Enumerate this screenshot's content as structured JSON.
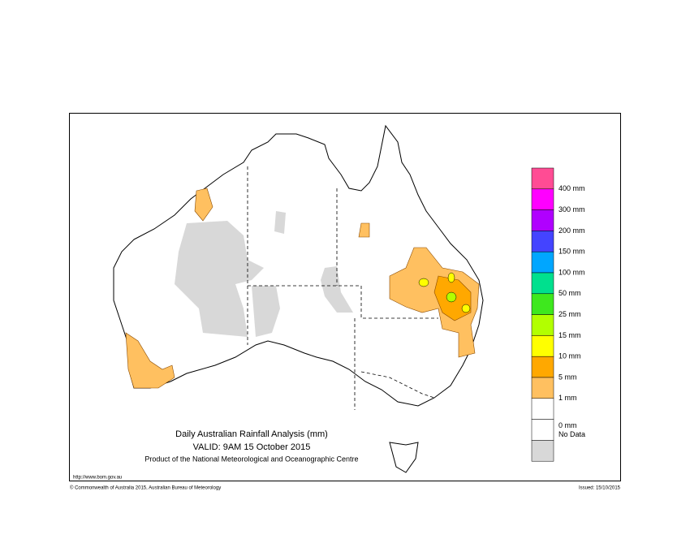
{
  "map": {
    "title": "Daily Australian Rainfall Analysis (mm)",
    "valid": "VALID: 9AM 15 October 2015",
    "product": "Product of the National Meteorological and Oceanographic Centre",
    "url": "http://www.bom.gov.au",
    "copyright": "© Commonwealth of Australia 2015, Australian Bureau of Meteorology",
    "issued": "Issued: 15/10/2015",
    "legend": {
      "labels": [
        "400 mm",
        "300 mm",
        "200 mm",
        "150 mm",
        "100 mm",
        "50 mm",
        "25 mm",
        "15 mm",
        "10 mm",
        "5 mm",
        "1 mm",
        "0 mm",
        "No Data"
      ],
      "colors": [
        "#ff4c94",
        "#ff00ff",
        "#b000ff",
        "#4444ff",
        "#00a6ff",
        "#00e08e",
        "#3ee81e",
        "#b2ff00",
        "#ffff00",
        "#ffa800",
        "#ffc060",
        "#ffffff",
        "#ffffff",
        "#d8d8d8"
      ]
    }
  }
}
